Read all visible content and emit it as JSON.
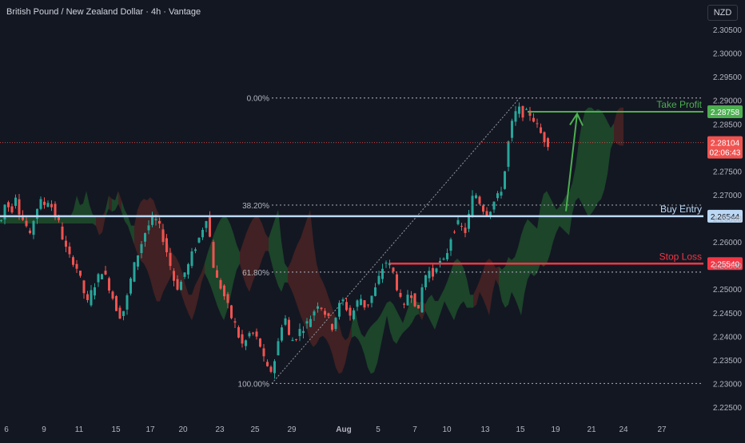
{
  "header": {
    "title": "British Pound / New Zealand Dollar · 4h · Vantage",
    "currency": "NZD"
  },
  "colors": {
    "background": "#131722",
    "bull": "#26a69a",
    "bear": "#ef5350",
    "cloud_bull": "#1e4d2b",
    "cloud_bear": "#4a2323",
    "take_profit": "#4caf50",
    "stop_loss": "#f23645",
    "buy_entry": "#bbd9f5",
    "axis_text": "#b2b5be"
  },
  "chart_data": {
    "type": "candlestick",
    "symbol": "GBPNZD",
    "timeframe": "4h",
    "ylim": [
      2.2225,
      2.3095
    ],
    "y_ticks": [
      "2.30500",
      "2.30000",
      "2.29500",
      "2.29000",
      "2.28500",
      "2.28000",
      "2.27500",
      "2.27000",
      "2.26500",
      "2.26000",
      "2.25500",
      "2.25000",
      "2.24500",
      "2.24000",
      "2.23500",
      "2.23000",
      "2.22500"
    ],
    "x_ticks": [
      "6",
      "9",
      "11",
      "15",
      "17",
      "20",
      "23",
      "25",
      "29",
      "Aug",
      "5",
      "7",
      "10",
      "13",
      "15",
      "19",
      "21",
      "24",
      "27"
    ],
    "price_path": [
      [
        0,
        2.2645
      ],
      [
        6,
        2.269
      ],
      [
        12,
        2.266
      ],
      [
        18,
        2.27
      ],
      [
        24,
        2.2655
      ],
      [
        30,
        2.264
      ],
      [
        36,
        2.261
      ],
      [
        42,
        2.266
      ],
      [
        48,
        2.2685
      ],
      [
        54,
        2.268
      ],
      [
        60,
        2.269
      ],
      [
        66,
        2.266
      ],
      [
        72,
        2.264
      ],
      [
        78,
        2.26
      ],
      [
        84,
        2.257
      ],
      [
        90,
        2.256
      ],
      [
        96,
        2.254
      ],
      [
        102,
        2.25
      ],
      [
        108,
        2.247
      ],
      [
        114,
        2.25
      ],
      [
        120,
        2.252
      ],
      [
        126,
        2.254
      ],
      [
        132,
        2.252
      ],
      [
        138,
        2.249
      ],
      [
        144,
        2.246
      ],
      [
        150,
        2.244
      ],
      [
        156,
        2.247
      ],
      [
        162,
        2.252
      ],
      [
        168,
        2.256
      ],
      [
        174,
        2.259
      ],
      [
        180,
        2.262
      ],
      [
        186,
        2.264
      ],
      [
        192,
        2.265
      ],
      [
        198,
        2.263
      ],
      [
        204,
        2.26
      ],
      [
        210,
        2.256
      ],
      [
        216,
        2.252
      ],
      [
        222,
        2.25
      ],
      [
        228,
        2.253
      ],
      [
        234,
        2.255
      ],
      [
        240,
        2.258
      ],
      [
        246,
        2.26
      ],
      [
        252,
        2.263
      ],
      [
        258,
        2.266
      ],
      [
        264,
        2.256
      ],
      [
        270,
        2.252
      ],
      [
        276,
        2.25
      ],
      [
        282,
        2.247
      ],
      [
        288,
        2.244
      ],
      [
        294,
        2.242
      ],
      [
        300,
        2.238
      ],
      [
        306,
        2.239
      ],
      [
        312,
        2.241
      ],
      [
        318,
        2.24
      ],
      [
        324,
        2.238
      ],
      [
        330,
        2.234
      ],
      [
        336,
        2.232
      ],
      [
        342,
        2.235
      ],
      [
        348,
        2.24
      ],
      [
        354,
        2.245
      ],
      [
        360,
        2.24
      ],
      [
        366,
        2.239
      ],
      [
        372,
        2.241
      ],
      [
        378,
        2.242
      ],
      [
        384,
        2.243
      ],
      [
        390,
        2.245
      ],
      [
        396,
        2.247
      ],
      [
        402,
        2.246
      ],
      [
        408,
        2.244
      ],
      [
        414,
        2.242
      ],
      [
        420,
        2.245
      ],
      [
        426,
        2.248
      ],
      [
        432,
        2.246
      ],
      [
        438,
        2.244
      ],
      [
        444,
        2.247
      ],
      [
        450,
        2.248
      ],
      [
        456,
        2.246
      ],
      [
        462,
        2.248
      ],
      [
        468,
        2.25
      ],
      [
        474,
        2.253
      ],
      [
        480,
        2.256
      ],
      [
        486,
        2.255
      ],
      [
        492,
        2.253
      ],
      [
        498,
        2.248
      ],
      [
        504,
        2.246
      ],
      [
        510,
        2.25
      ],
      [
        516,
        2.248
      ],
      [
        522,
        2.245
      ],
      [
        528,
        2.252
      ],
      [
        534,
        2.254
      ],
      [
        540,
        2.253
      ],
      [
        546,
        2.256
      ],
      [
        552,
        2.255
      ],
      [
        558,
        2.258
      ],
      [
        564,
        2.262
      ],
      [
        570,
        2.264
      ],
      [
        576,
        2.263
      ],
      [
        582,
        2.262
      ],
      [
        588,
        2.269
      ],
      [
        594,
        2.27
      ],
      [
        600,
        2.268
      ],
      [
        606,
        2.266
      ],
      [
        612,
        2.267
      ],
      [
        618,
        2.269
      ],
      [
        624,
        2.27
      ],
      [
        630,
        2.275
      ],
      [
        636,
        2.283
      ],
      [
        642,
        2.287
      ],
      [
        648,
        2.288
      ],
      [
        654,
        2.287
      ],
      [
        660,
        2.2875
      ],
      [
        666,
        2.286
      ],
      [
        672,
        2.284
      ],
      [
        678,
        2.282
      ],
      [
        684,
        2.281
      ]
    ],
    "fibonacci": [
      {
        "label": "0.00%",
        "price": 2.2905
      },
      {
        "label": "38.20%",
        "price": 2.2678
      },
      {
        "label": "61.80%",
        "price": 2.2536
      },
      {
        "label": "100.00%",
        "price": 2.23
      }
    ],
    "levels": [
      {
        "label": "Take Profit",
        "price": 2.28758,
        "price_text": "2.28758"
      },
      {
        "label": "Buy Entry",
        "price": 2.26544,
        "price_text": "2.26544"
      },
      {
        "label": "Stop Loss",
        "price": 2.2554,
        "price_text": "2.25540"
      }
    ],
    "current_price": {
      "price": 2.28104,
      "price_text": "2.28104",
      "countdown": "02:06:43"
    },
    "projection": {
      "from_price": 2.2665,
      "to_price": 2.2875
    }
  }
}
